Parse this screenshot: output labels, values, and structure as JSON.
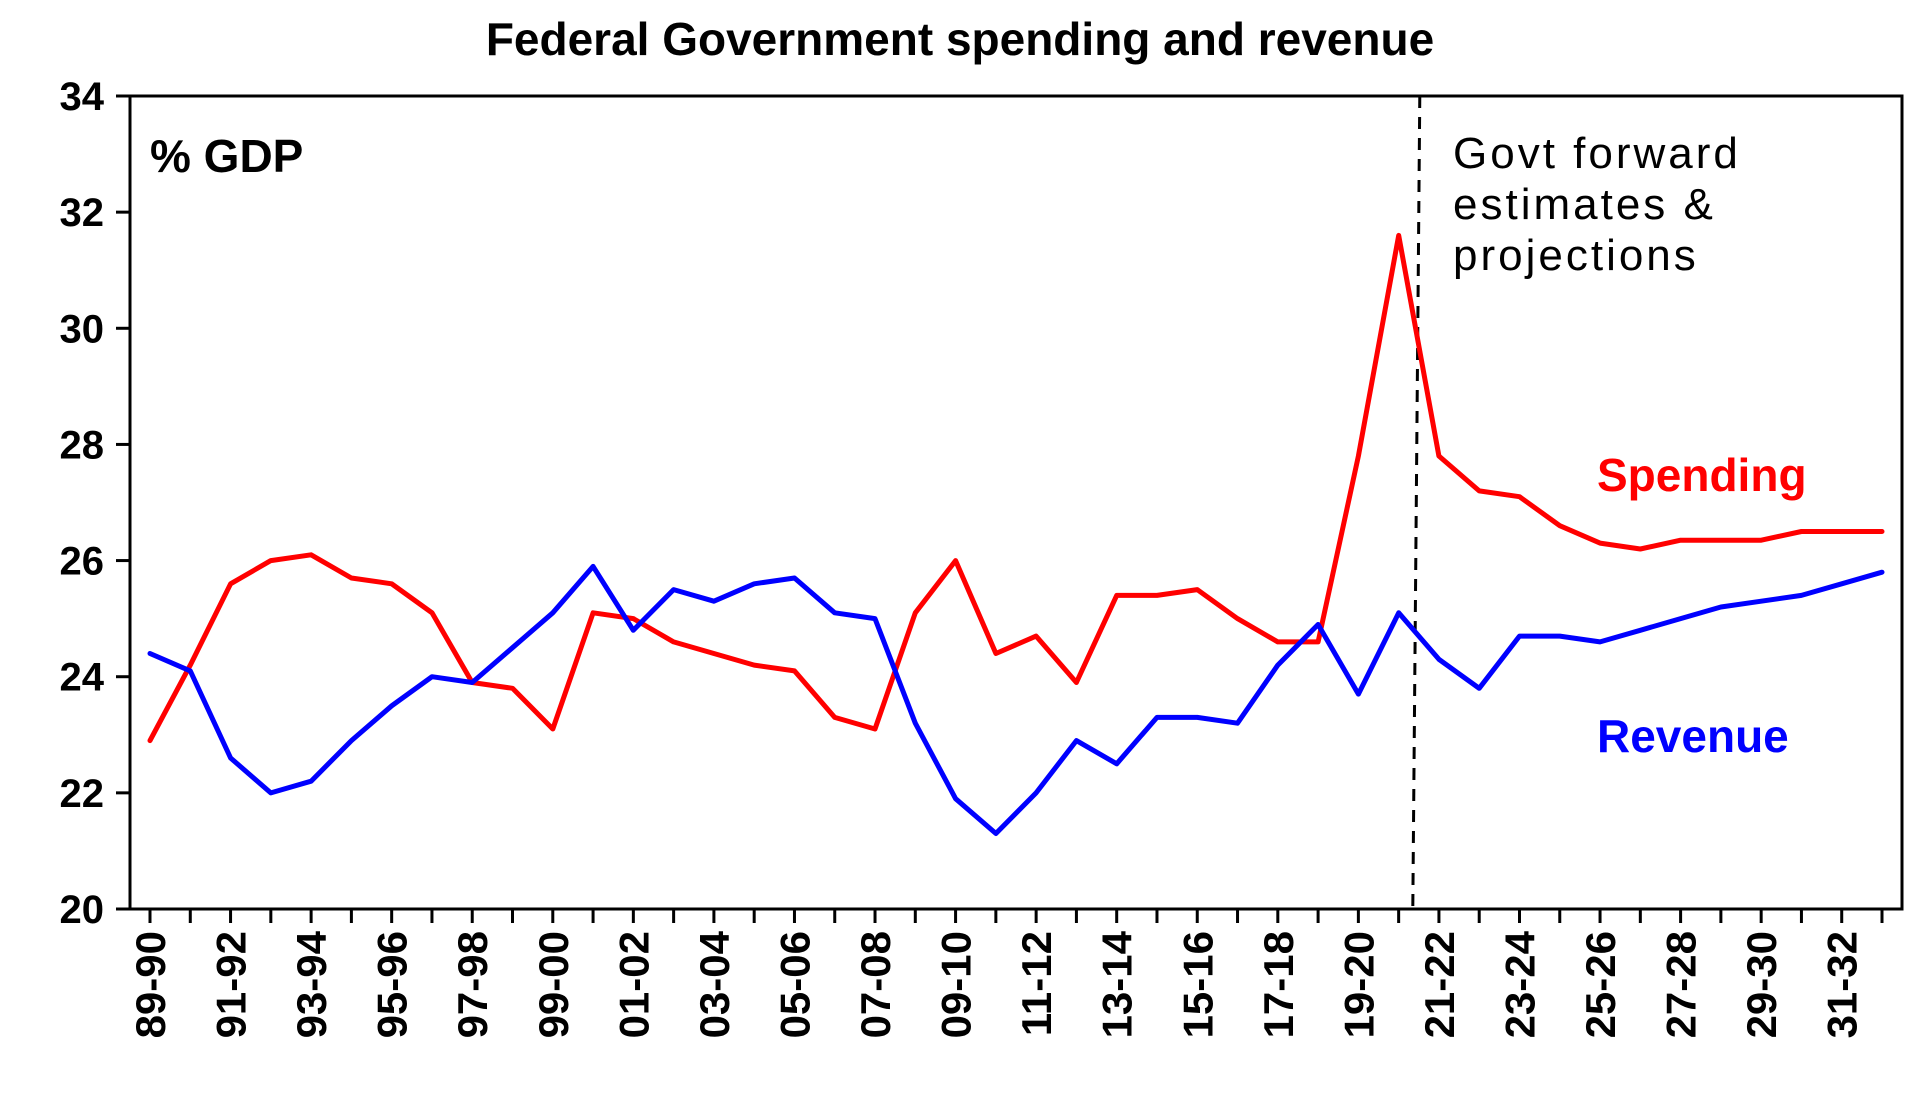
{
  "chart_data": {
    "type": "line",
    "title": "Federal Government spending and revenue",
    "ylabel": "% GDP",
    "xlabel": "",
    "ylim": [
      20,
      34
    ],
    "yticks": [
      20,
      22,
      24,
      26,
      28,
      30,
      32,
      34
    ],
    "grid": false,
    "x": [
      "89-90",
      "90-91",
      "91-92",
      "92-93",
      "93-94",
      "94-95",
      "95-96",
      "96-97",
      "97-98",
      "98-99",
      "99-00",
      "00-01",
      "01-02",
      "02-03",
      "03-04",
      "04-05",
      "05-06",
      "06-07",
      "07-08",
      "08-09",
      "09-10",
      "10-11",
      "11-12",
      "12-13",
      "13-14",
      "14-15",
      "15-16",
      "16-17",
      "17-18",
      "18-19",
      "19-20",
      "20-21",
      "21-22",
      "22-23",
      "23-24",
      "24-25",
      "25-26",
      "26-27",
      "27-28",
      "28-29",
      "29-30",
      "30-31",
      "31-32",
      "32-33"
    ],
    "xtick_labels": [
      "89-90",
      "91-92",
      "93-94",
      "95-96",
      "97-98",
      "99-00",
      "01-02",
      "03-04",
      "05-06",
      "07-08",
      "09-10",
      "11-12",
      "13-14",
      "15-16",
      "17-18",
      "19-20",
      "21-22",
      "23-24",
      "25-26",
      "27-28",
      "29-30",
      "31-32"
    ],
    "series": [
      {
        "name": "Spending",
        "label": "Spending",
        "color": "#ff0000",
        "values": [
          22.9,
          24.2,
          25.6,
          26.0,
          26.1,
          25.7,
          25.6,
          25.1,
          23.9,
          23.8,
          23.1,
          25.1,
          25.0,
          24.6,
          24.4,
          24.2,
          24.1,
          23.3,
          23.1,
          25.1,
          26.0,
          24.4,
          24.7,
          23.9,
          25.4,
          25.4,
          25.5,
          25.0,
          24.6,
          24.6,
          27.8,
          31.6,
          27.8,
          27.2,
          27.1,
          26.6,
          26.3,
          26.2,
          26.35,
          26.35,
          26.35,
          26.5,
          26.5,
          26.5
        ]
      },
      {
        "name": "Revenue",
        "label": "Revenue",
        "color": "#0000ff",
        "values": [
          24.4,
          24.1,
          22.6,
          22.0,
          22.2,
          22.9,
          23.5,
          24.0,
          23.9,
          24.5,
          25.1,
          25.9,
          24.8,
          25.5,
          25.3,
          25.6,
          25.7,
          25.1,
          25.0,
          23.2,
          21.9,
          21.3,
          22.0,
          22.9,
          22.5,
          23.3,
          23.3,
          23.2,
          24.2,
          24.9,
          23.7,
          25.1,
          24.3,
          23.8,
          24.7,
          24.7,
          24.6,
          24.8,
          25.0,
          25.2,
          25.3,
          25.4,
          25.6,
          25.8
        ]
      }
    ],
    "annotations": [
      {
        "type": "vline",
        "between": [
          "20-21",
          "21-22"
        ],
        "style": "dashed",
        "text_lines": [
          "Govt forward",
          "estimates &",
          "projections"
        ]
      }
    ]
  }
}
